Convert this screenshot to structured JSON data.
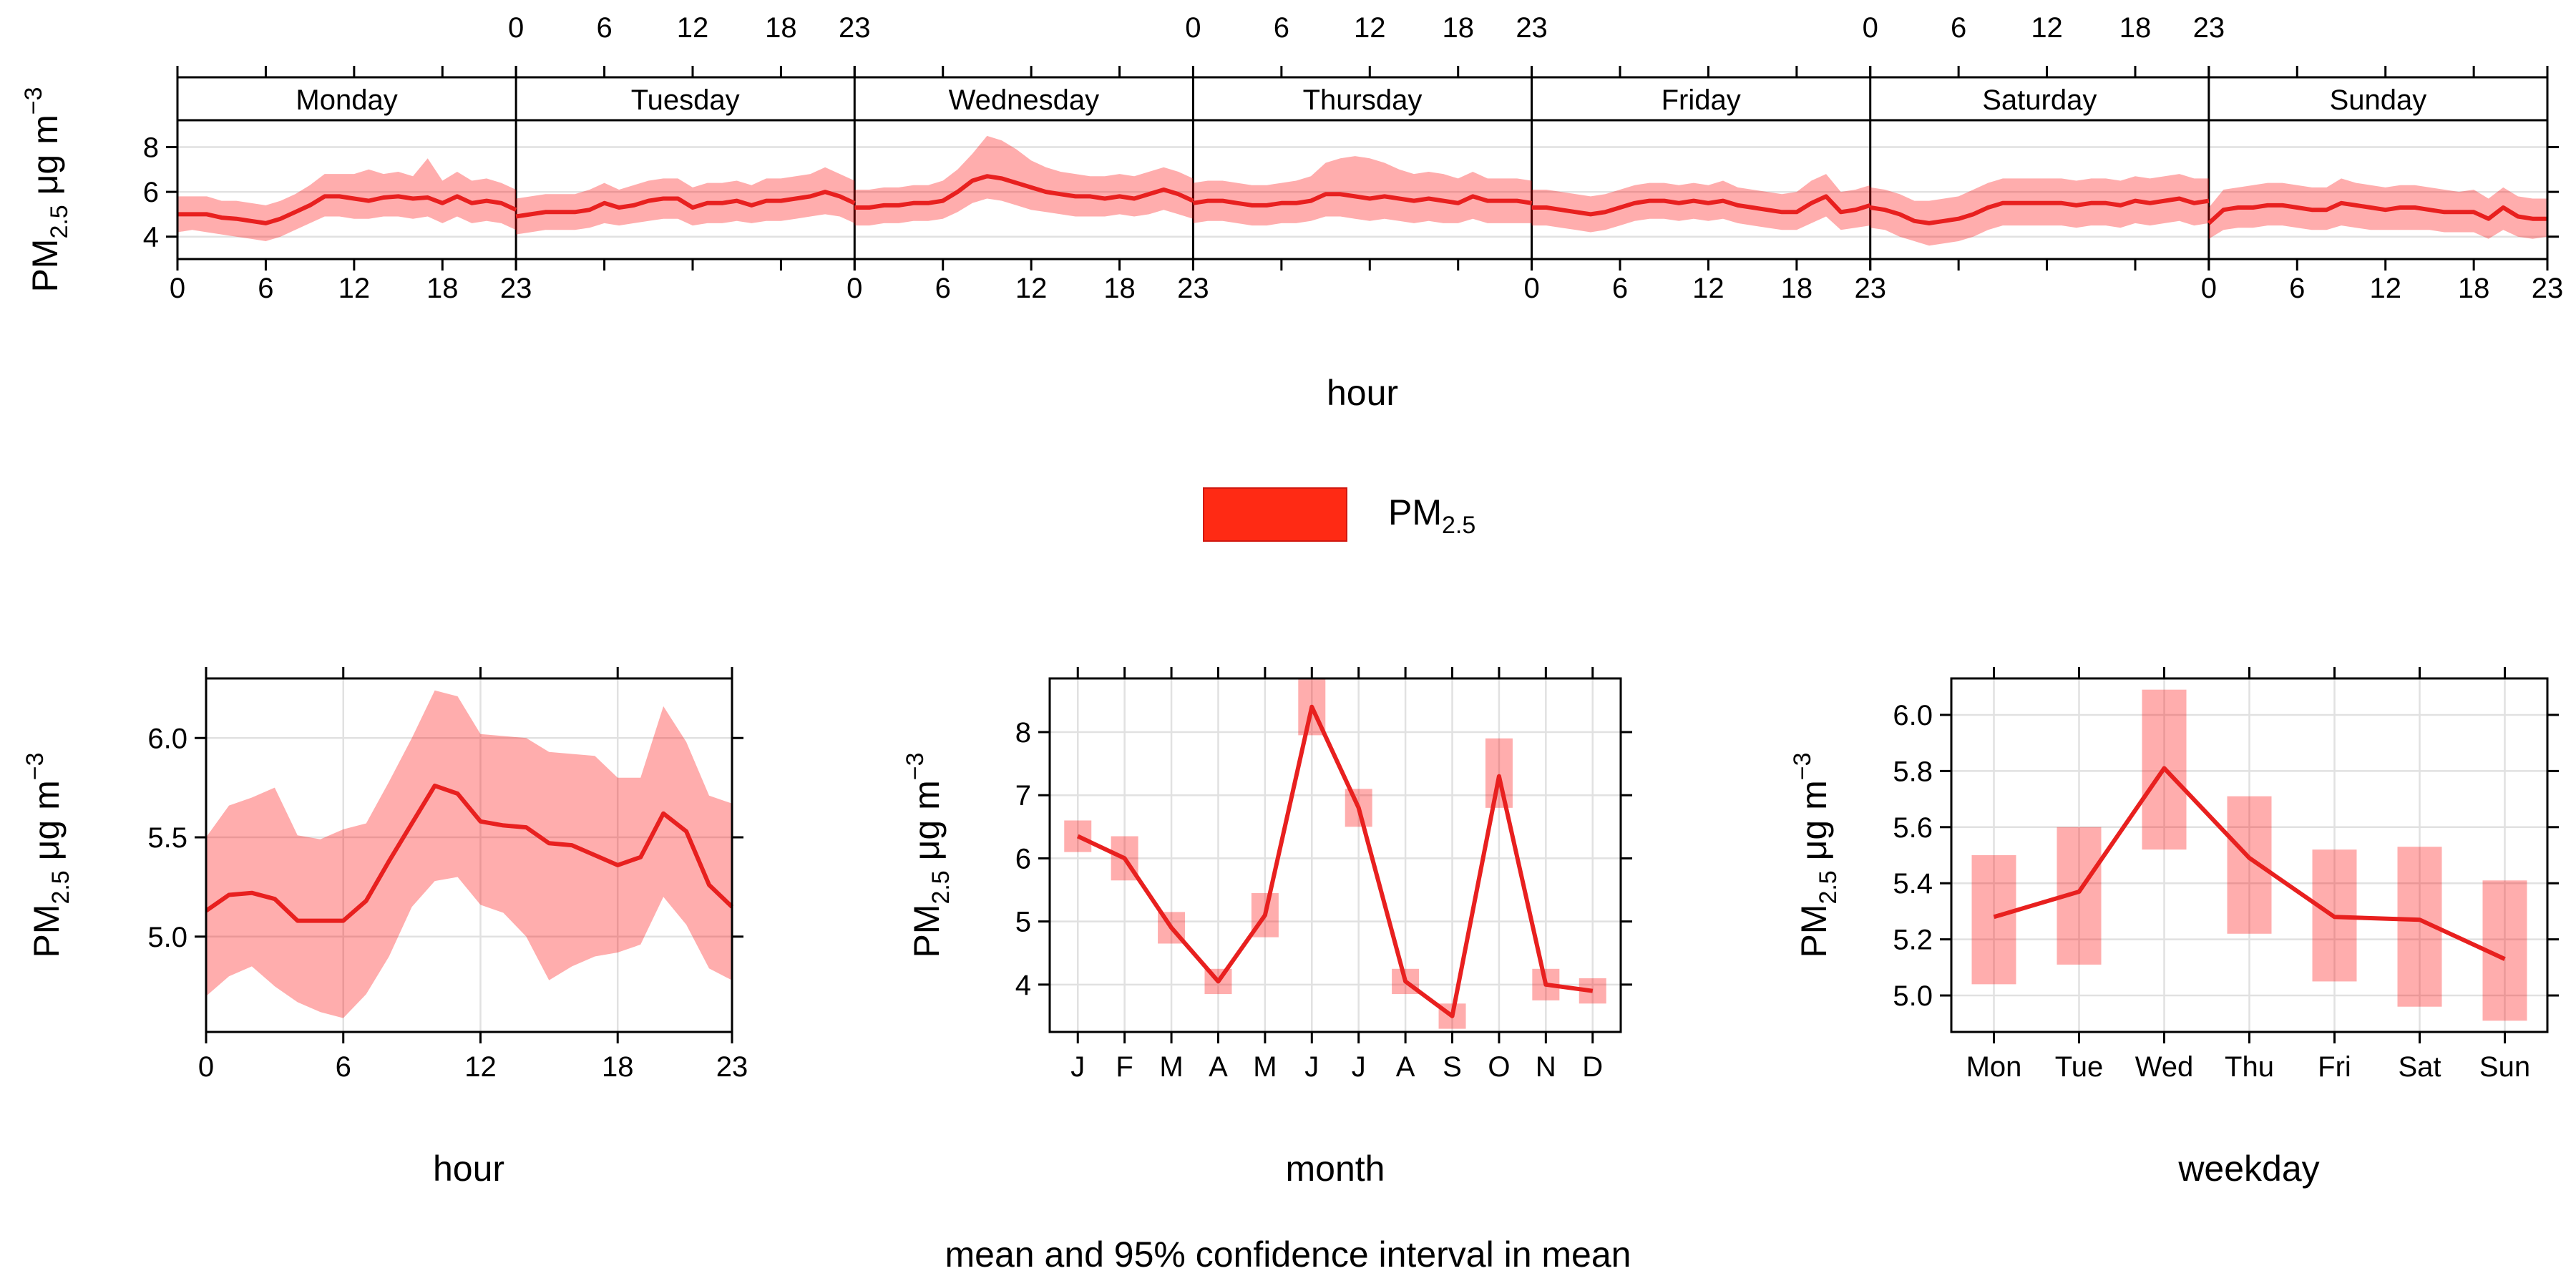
{
  "chart_data": {
    "caption": "mean and 95% confidence interval in mean",
    "legend": {
      "main": "PM",
      "sub": "2.5",
      "color": "#ff2a14"
    },
    "colors": {
      "line": "#e8201f",
      "band": "#ff0000"
    },
    "units": {
      "pollutant": "PM",
      "sub": "2.5",
      "unit": " μg m",
      "exp": "−3"
    },
    "panels": [
      {
        "type": "line",
        "name": "day-hour",
        "xlabel": "hour",
        "ylim": [
          3.0,
          9.2
        ],
        "yticks": [
          4,
          6,
          8
        ],
        "yticklabels": [
          "4",
          "6",
          "8"
        ],
        "xtick_labels": [
          "0",
          "6",
          "12",
          "18",
          "23"
        ],
        "days": [
          {
            "name": "Monday",
            "mean": [
              5.0,
              5.0,
              5.0,
              4.85,
              4.8,
              4.7,
              4.6,
              4.8,
              5.1,
              5.4,
              5.8,
              5.8,
              5.7,
              5.6,
              5.75,
              5.8,
              5.7,
              5.75,
              5.5,
              5.8,
              5.5,
              5.6,
              5.5,
              5.2
            ],
            "lower": [
              4.2,
              4.3,
              4.2,
              4.1,
              4.0,
              3.9,
              3.8,
              4.0,
              4.3,
              4.6,
              4.9,
              4.9,
              4.8,
              4.8,
              4.9,
              4.9,
              4.8,
              4.9,
              4.6,
              4.9,
              4.6,
              4.7,
              4.6,
              4.3
            ],
            "upper": [
              5.8,
              5.8,
              5.8,
              5.6,
              5.6,
              5.5,
              5.4,
              5.6,
              5.9,
              6.3,
              6.8,
              6.8,
              6.8,
              7.0,
              6.8,
              6.9,
              6.7,
              7.5,
              6.5,
              6.9,
              6.5,
              6.6,
              6.4,
              6.1
            ]
          },
          {
            "name": "Tuesday",
            "mean": [
              4.9,
              5.0,
              5.1,
              5.1,
              5.1,
              5.2,
              5.5,
              5.3,
              5.4,
              5.6,
              5.7,
              5.7,
              5.3,
              5.5,
              5.5,
              5.6,
              5.4,
              5.6,
              5.6,
              5.7,
              5.8,
              6.0,
              5.8,
              5.5
            ],
            "lower": [
              4.1,
              4.2,
              4.3,
              4.3,
              4.3,
              4.4,
              4.6,
              4.5,
              4.6,
              4.7,
              4.8,
              4.8,
              4.5,
              4.6,
              4.6,
              4.7,
              4.6,
              4.7,
              4.7,
              4.8,
              4.9,
              5.0,
              4.9,
              4.6
            ],
            "upper": [
              5.7,
              5.8,
              5.9,
              5.9,
              5.9,
              6.1,
              6.4,
              6.1,
              6.3,
              6.5,
              6.6,
              6.6,
              6.2,
              6.4,
              6.4,
              6.5,
              6.3,
              6.6,
              6.6,
              6.7,
              6.8,
              7.1,
              6.8,
              6.5
            ]
          },
          {
            "name": "Wednesday",
            "mean": [
              5.3,
              5.3,
              5.4,
              5.4,
              5.5,
              5.5,
              5.6,
              6.0,
              6.5,
              6.7,
              6.6,
              6.4,
              6.2,
              6.0,
              5.9,
              5.8,
              5.8,
              5.7,
              5.8,
              5.7,
              5.9,
              6.1,
              5.9,
              5.6
            ],
            "lower": [
              4.5,
              4.5,
              4.6,
              4.6,
              4.7,
              4.7,
              4.8,
              5.1,
              5.5,
              5.7,
              5.6,
              5.4,
              5.2,
              5.1,
              5.0,
              4.9,
              4.9,
              4.9,
              5.0,
              4.9,
              5.0,
              5.2,
              5.0,
              4.8
            ],
            "upper": [
              6.1,
              6.1,
              6.2,
              6.2,
              6.3,
              6.3,
              6.5,
              7.0,
              7.7,
              8.5,
              8.3,
              7.9,
              7.4,
              7.1,
              6.9,
              6.8,
              6.7,
              6.7,
              6.8,
              6.7,
              6.9,
              7.1,
              6.9,
              6.6
            ]
          },
          {
            "name": "Thursday",
            "mean": [
              5.5,
              5.6,
              5.6,
              5.5,
              5.4,
              5.4,
              5.5,
              5.5,
              5.6,
              5.9,
              5.9,
              5.8,
              5.7,
              5.8,
              5.7,
              5.6,
              5.7,
              5.6,
              5.5,
              5.8,
              5.6,
              5.6,
              5.6,
              5.5
            ],
            "lower": [
              4.6,
              4.7,
              4.7,
              4.6,
              4.5,
              4.5,
              4.6,
              4.6,
              4.7,
              4.9,
              4.9,
              4.8,
              4.7,
              4.8,
              4.7,
              4.6,
              4.7,
              4.6,
              4.6,
              4.8,
              4.6,
              4.6,
              4.6,
              4.6
            ],
            "upper": [
              6.4,
              6.5,
              6.5,
              6.4,
              6.3,
              6.3,
              6.4,
              6.5,
              6.7,
              7.3,
              7.5,
              7.6,
              7.5,
              7.3,
              7.0,
              6.8,
              6.9,
              6.8,
              6.6,
              6.9,
              6.6,
              6.6,
              6.6,
              6.5
            ]
          },
          {
            "name": "Friday",
            "mean": [
              5.3,
              5.3,
              5.2,
              5.1,
              5.0,
              5.1,
              5.3,
              5.5,
              5.6,
              5.6,
              5.5,
              5.6,
              5.5,
              5.6,
              5.4,
              5.3,
              5.2,
              5.1,
              5.1,
              5.5,
              5.8,
              5.1,
              5.2,
              5.4
            ],
            "lower": [
              4.5,
              4.5,
              4.4,
              4.3,
              4.2,
              4.3,
              4.5,
              4.7,
              4.8,
              4.8,
              4.7,
              4.8,
              4.7,
              4.8,
              4.6,
              4.5,
              4.4,
              4.3,
              4.3,
              4.6,
              4.9,
              4.3,
              4.4,
              4.5
            ],
            "upper": [
              6.1,
              6.1,
              6.0,
              5.9,
              5.8,
              5.9,
              6.1,
              6.3,
              6.4,
              6.4,
              6.3,
              6.4,
              6.3,
              6.5,
              6.2,
              6.1,
              6.0,
              5.9,
              6.0,
              6.5,
              6.8,
              6.0,
              6.1,
              6.3
            ]
          },
          {
            "name": "Saturday",
            "mean": [
              5.3,
              5.2,
              5.0,
              4.7,
              4.6,
              4.7,
              4.8,
              5.0,
              5.3,
              5.5,
              5.5,
              5.5,
              5.5,
              5.5,
              5.4,
              5.5,
              5.5,
              5.4,
              5.6,
              5.5,
              5.6,
              5.7,
              5.5,
              5.6
            ],
            "lower": [
              4.4,
              4.3,
              4.0,
              3.8,
              3.6,
              3.7,
              3.8,
              4.0,
              4.3,
              4.5,
              4.5,
              4.5,
              4.5,
              4.5,
              4.4,
              4.5,
              4.5,
              4.4,
              4.6,
              4.5,
              4.6,
              4.7,
              4.5,
              4.6
            ],
            "upper": [
              6.2,
              6.1,
              5.9,
              5.6,
              5.6,
              5.7,
              5.8,
              6.1,
              6.4,
              6.6,
              6.6,
              6.6,
              6.6,
              6.6,
              6.5,
              6.6,
              6.6,
              6.5,
              6.7,
              6.6,
              6.7,
              6.8,
              6.6,
              6.6
            ]
          },
          {
            "name": "Sunday",
            "mean": [
              4.6,
              5.2,
              5.3,
              5.3,
              5.4,
              5.4,
              5.3,
              5.2,
              5.2,
              5.5,
              5.4,
              5.3,
              5.2,
              5.3,
              5.3,
              5.2,
              5.1,
              5.1,
              5.1,
              4.8,
              5.3,
              4.9,
              4.8,
              4.8
            ],
            "lower": [
              3.9,
              4.3,
              4.4,
              4.4,
              4.5,
              4.5,
              4.4,
              4.3,
              4.3,
              4.5,
              4.4,
              4.3,
              4.3,
              4.3,
              4.3,
              4.3,
              4.2,
              4.2,
              4.2,
              3.9,
              4.3,
              4.0,
              3.9,
              4.0
            ],
            "upper": [
              5.3,
              6.1,
              6.2,
              6.3,
              6.4,
              6.4,
              6.3,
              6.2,
              6.2,
              6.6,
              6.4,
              6.3,
              6.2,
              6.3,
              6.3,
              6.2,
              6.1,
              6.0,
              6.1,
              5.7,
              6.2,
              5.8,
              5.7,
              5.7
            ]
          }
        ]
      },
      {
        "type": "line",
        "name": "hour",
        "xlabel": "hour",
        "x": [
          0,
          1,
          2,
          3,
          4,
          5,
          6,
          7,
          8,
          9,
          10,
          11,
          12,
          13,
          14,
          15,
          16,
          17,
          18,
          19,
          20,
          21,
          22,
          23
        ],
        "mean": [
          5.13,
          5.21,
          5.22,
          5.19,
          5.08,
          5.08,
          5.08,
          5.18,
          5.38,
          5.57,
          5.76,
          5.72,
          5.58,
          5.56,
          5.55,
          5.47,
          5.46,
          5.41,
          5.36,
          5.4,
          5.62,
          5.53,
          5.26,
          5.15
        ],
        "lower": [
          4.7,
          4.8,
          4.85,
          4.75,
          4.67,
          4.62,
          4.59,
          4.71,
          4.9,
          5.15,
          5.28,
          5.3,
          5.16,
          5.12,
          5.0,
          4.78,
          4.85,
          4.9,
          4.92,
          4.96,
          5.2,
          5.06,
          4.84,
          4.78
        ],
        "upper": [
          5.5,
          5.66,
          5.7,
          5.75,
          5.51,
          5.49,
          5.54,
          5.57,
          5.78,
          6.0,
          6.24,
          6.21,
          6.02,
          6.01,
          6.0,
          5.93,
          5.92,
          5.91,
          5.8,
          5.8,
          6.16,
          5.98,
          5.71,
          5.67
        ],
        "xlim": [
          0,
          23
        ],
        "ylim": [
          4.52,
          6.3
        ],
        "xticks": [
          0,
          6,
          12,
          18,
          23
        ],
        "xticklabels": [
          "0",
          "6",
          "12",
          "18",
          "23"
        ],
        "yticks": [
          5.0,
          5.5,
          6.0
        ],
        "yticklabels": [
          "5.0",
          "5.5",
          "6.0"
        ]
      },
      {
        "type": "line",
        "name": "month",
        "xlabel": "month",
        "categories": [
          "J",
          "F",
          "M",
          "A",
          "M",
          "J",
          "J",
          "A",
          "S",
          "O",
          "N",
          "D"
        ],
        "mean": [
          6.35,
          6.0,
          4.9,
          4.05,
          5.1,
          8.4,
          6.8,
          4.05,
          3.5,
          7.3,
          4.0,
          3.9
        ],
        "lower": [
          6.1,
          5.65,
          4.65,
          3.85,
          4.75,
          7.95,
          6.5,
          3.85,
          3.3,
          6.8,
          3.75,
          3.7
        ],
        "upper": [
          6.6,
          6.35,
          5.15,
          4.25,
          5.45,
          8.85,
          7.1,
          4.25,
          3.7,
          7.9,
          4.25,
          4.1
        ],
        "ylim": [
          3.25,
          8.85
        ],
        "yticks": [
          4,
          5,
          6,
          7,
          8
        ],
        "yticklabels": [
          "4",
          "5",
          "6",
          "7",
          "8"
        ]
      },
      {
        "type": "line",
        "name": "weekday",
        "xlabel": "weekday",
        "categories": [
          "Mon",
          "Tue",
          "Wed",
          "Thu",
          "Fri",
          "Sat",
          "Sun"
        ],
        "mean": [
          5.28,
          5.37,
          5.81,
          5.49,
          5.28,
          5.27,
          5.13
        ],
        "lower": [
          5.04,
          5.11,
          5.52,
          5.22,
          5.05,
          4.96,
          4.91
        ],
        "upper": [
          5.5,
          5.6,
          6.09,
          5.71,
          5.52,
          5.53,
          5.41
        ],
        "ylim": [
          4.87,
          6.13
        ],
        "yticks": [
          5.0,
          5.2,
          5.4,
          5.6,
          5.8,
          6.0
        ],
        "yticklabels": [
          "5.0",
          "5.2",
          "5.4",
          "5.6",
          "5.8",
          "6.0"
        ]
      }
    ]
  }
}
